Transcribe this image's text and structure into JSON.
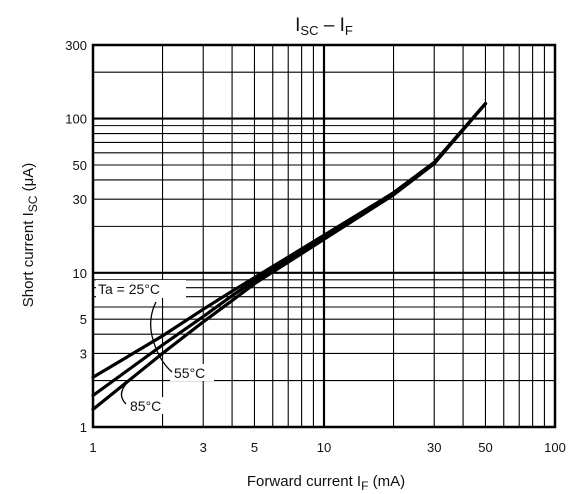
{
  "chart_data": {
    "type": "line",
    "title_main": "I",
    "title_sub1": "SC",
    "title_sep": " – I",
    "title_sub2": "F",
    "xlabel_main": "Forward current I",
    "xlabel_sub": "F",
    "xlabel_unit": " (mA)",
    "ylabel_main": "Short current I",
    "ylabel_sub": "SC",
    "ylabel_unit": " (μA)",
    "x_scale": "log",
    "y_scale": "log",
    "xlim": [
      1,
      100
    ],
    "ylim": [
      1,
      300
    ],
    "x_ticks": [
      {
        "value": 1,
        "label": "1"
      },
      {
        "value": 3,
        "label": "3"
      },
      {
        "value": 5,
        "label": "5"
      },
      {
        "value": 10,
        "label": "10"
      },
      {
        "value": 30,
        "label": "30"
      },
      {
        "value": 50,
        "label": "50"
      },
      {
        "value": 100,
        "label": "100"
      }
    ],
    "y_ticks": [
      {
        "value": 1,
        "label": "1"
      },
      {
        "value": 3,
        "label": "3"
      },
      {
        "value": 5,
        "label": "5"
      },
      {
        "value": 10,
        "label": "10"
      },
      {
        "value": 30,
        "label": "30"
      },
      {
        "value": 50,
        "label": "50"
      },
      {
        "value": 100,
        "label": "100"
      },
      {
        "value": 300,
        "label": "300"
      }
    ],
    "grid": true,
    "series": [
      {
        "name": "Ta = 25°C",
        "x": [
          1,
          2,
          3,
          4,
          5,
          10,
          20,
          30,
          50
        ],
        "y": [
          2.1,
          3.9,
          5.8,
          7.6,
          9.3,
          17.5,
          33,
          52,
          125
        ]
      },
      {
        "name": "55°C",
        "x": [
          1,
          2,
          3,
          4,
          5,
          10,
          20,
          30,
          50
        ],
        "y": [
          1.6,
          3.4,
          5.2,
          7.1,
          8.9,
          17,
          33,
          52,
          125
        ]
      },
      {
        "name": "85°C",
        "x": [
          1,
          2,
          3,
          4,
          5,
          10,
          20,
          30,
          50
        ],
        "y": [
          1.3,
          3.0,
          4.8,
          6.6,
          8.5,
          16.5,
          32,
          51,
          125
        ]
      }
    ]
  }
}
